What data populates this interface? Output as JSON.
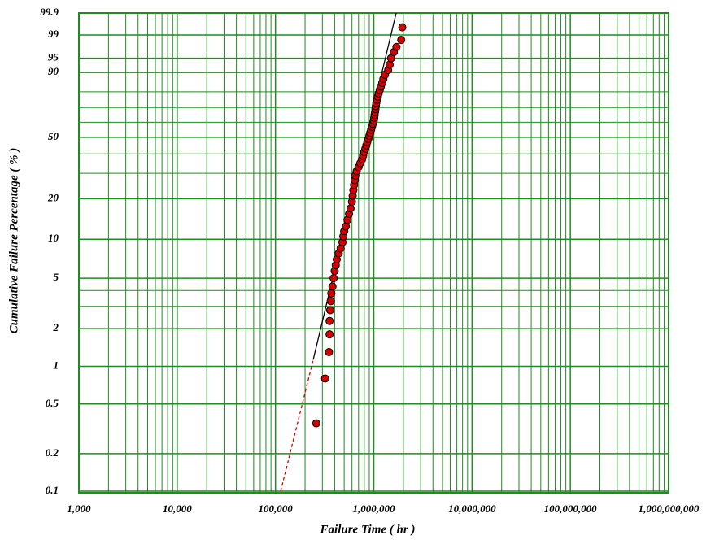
{
  "chart_data": {
    "type": "weibull-scatter",
    "x_label": "Failure Time ( hr )",
    "y_label": "Cumulative Failure Percentage ( % )",
    "x_log": true,
    "y_scale": "weibull",
    "grid": true,
    "grid_color": "#1e8c1e",
    "xlim": [
      1000,
      1000000000
    ],
    "xticks": [
      {
        "value": 1000,
        "label": "1,000"
      },
      {
        "value": 10000,
        "label": "10,000"
      },
      {
        "value": 100000,
        "label": "100,000"
      },
      {
        "value": 1000000,
        "label": "1,000,000"
      },
      {
        "value": 10000000,
        "label": "10,000,000"
      },
      {
        "value": 100000000,
        "label": "100,000,000"
      },
      {
        "value": 1000000000,
        "label": "1,000,000,000"
      }
    ],
    "x_minor_grid": [
      2000,
      3000,
      4000,
      5000,
      6000,
      7000,
      8000,
      9000,
      20000,
      30000,
      40000,
      50000,
      60000,
      70000,
      80000,
      90000,
      200000,
      300000,
      400000,
      500000,
      600000,
      700000,
      800000,
      900000,
      2000000,
      3000000,
      4000000,
      5000000,
      6000000,
      7000000,
      8000000,
      9000000,
      20000000,
      30000000,
      40000000,
      50000000,
      60000000,
      70000000,
      80000000,
      90000000,
      200000000,
      300000000,
      400000000,
      500000000,
      600000000,
      700000000,
      800000000,
      900000000
    ],
    "ylim": [
      0.1,
      99.9
    ],
    "yticks": [
      0.1,
      0.2,
      0.5,
      1,
      2,
      5,
      10,
      20,
      50,
      90,
      95,
      99,
      99.9
    ],
    "y_minor_grid": [
      3,
      4,
      30,
      40,
      60,
      70,
      80
    ],
    "series": [
      {
        "color": "#d40000",
        "x": [
          260000,
          320000,
          350000,
          355000,
          355000,
          360000,
          365000,
          370000,
          380000,
          390000,
          400000,
          410000,
          420000,
          440000,
          460000,
          480000,
          490000,
          500000,
          520000,
          540000,
          560000,
          580000,
          600000,
          610000,
          620000,
          630000,
          640000,
          650000,
          670000,
          700000,
          730000,
          760000,
          780000,
          800000,
          820000,
          840000,
          860000,
          880000,
          900000,
          920000,
          940000,
          960000,
          980000,
          1000000,
          1010000,
          1020000,
          1030000,
          1040000,
          1050000,
          1060000,
          1080000,
          1100000,
          1120000,
          1150000,
          1180000,
          1220000,
          1250000,
          1300000,
          1400000,
          1450000,
          1500000,
          1600000,
          1700000,
          1900000,
          1950000
        ],
        "values": [
          0.35,
          0.8,
          1.3,
          1.8,
          2.3,
          2.8,
          3.3,
          3.8,
          4.3,
          5,
          5.7,
          6.3,
          7,
          7.8,
          8.5,
          9.5,
          10.5,
          11.5,
          12.5,
          14,
          15.5,
          17,
          19,
          21,
          23,
          25,
          27,
          29,
          31,
          33,
          35,
          37,
          39,
          41,
          43,
          45,
          47,
          49,
          51,
          53,
          55,
          57,
          59,
          61,
          63,
          65,
          67,
          69,
          71,
          73,
          75,
          77,
          79,
          81,
          83,
          85,
          87,
          89,
          91,
          93,
          95,
          96.5,
          97.5,
          98.5,
          99.5
        ]
      }
    ],
    "fit_line": {
      "color": "#000000",
      "x": [
        242000,
        1690000
      ],
      "values": [
        1.13,
        99.9
      ]
    },
    "extrapolation_line": {
      "color": "#e00000",
      "x": [
        113000,
        242000
      ],
      "values": [
        0.1,
        1.13
      ]
    }
  }
}
